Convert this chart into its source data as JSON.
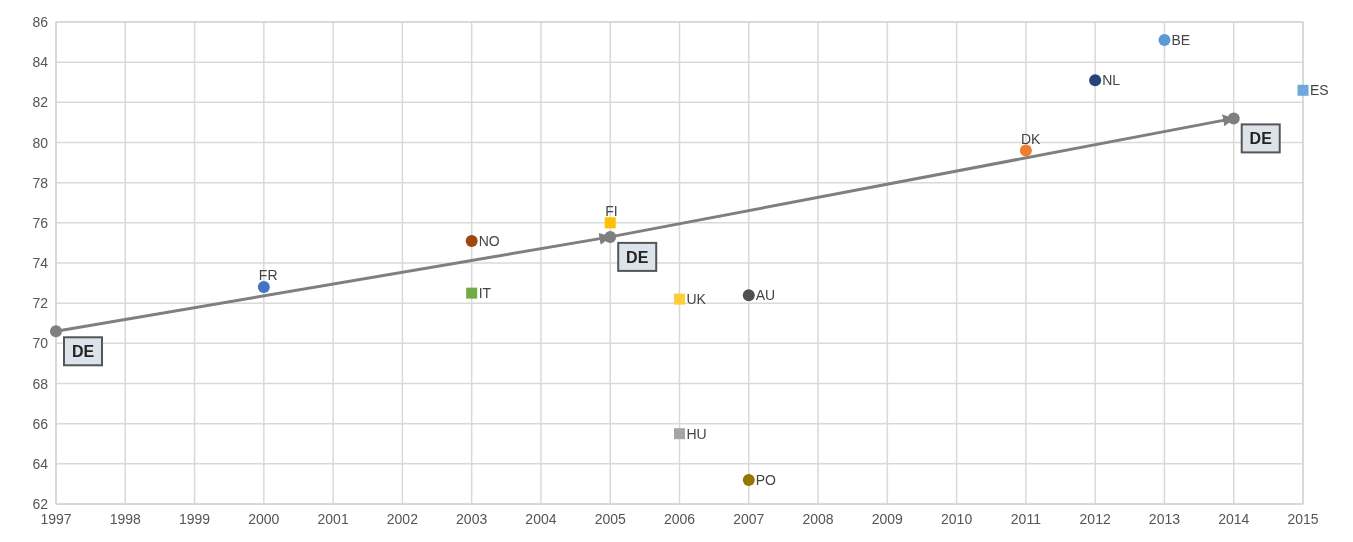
{
  "chart_data": {
    "type": "scatter",
    "xlim": [
      1997,
      2015
    ],
    "xticks": [
      1997,
      1998,
      1999,
      2000,
      2001,
      2002,
      2003,
      2004,
      2005,
      2006,
      2007,
      2008,
      2009,
      2010,
      2011,
      2012,
      2013,
      2014,
      2015
    ],
    "ylim": [
      62,
      86
    ],
    "yticks": [
      62,
      64,
      66,
      68,
      70,
      72,
      74,
      76,
      78,
      80,
      82,
      84,
      86
    ],
    "grid": true,
    "series": [
      {
        "name": "DE",
        "type": "line",
        "marker": "circle",
        "color": "#7f7f7f",
        "x": [
          1997,
          2005,
          2014
        ],
        "values": [
          70.6,
          75.3,
          81.2
        ]
      },
      {
        "name": "FR",
        "marker": "circle",
        "color": "#4472c4",
        "x": [
          2000
        ],
        "values": [
          72.8
        ]
      },
      {
        "name": "NO",
        "marker": "circle",
        "color": "#9e480e",
        "x": [
          2003
        ],
        "values": [
          75.1
        ]
      },
      {
        "name": "IT",
        "marker": "square",
        "color": "#70ad47",
        "x": [
          2003
        ],
        "values": [
          72.5
        ]
      },
      {
        "name": "FI",
        "marker": "square",
        "color": "#ffc000",
        "x": [
          2005
        ],
        "values": [
          76.0
        ]
      },
      {
        "name": "UK",
        "marker": "square",
        "color": "#ffcd38",
        "x": [
          2006
        ],
        "values": [
          72.2
        ]
      },
      {
        "name": "HU",
        "marker": "square",
        "color": "#a5a5a5",
        "x": [
          2006
        ],
        "values": [
          65.5
        ]
      },
      {
        "name": "AU",
        "marker": "circle",
        "color": "#505050",
        "x": [
          2007
        ],
        "values": [
          72.4
        ]
      },
      {
        "name": "PO",
        "marker": "circle",
        "color": "#997300",
        "x": [
          2007
        ],
        "values": [
          63.2
        ]
      },
      {
        "name": "DK",
        "marker": "circle",
        "color": "#ed7d31",
        "x": [
          2011
        ],
        "values": [
          79.6
        ]
      },
      {
        "name": "NL",
        "marker": "circle",
        "color": "#264478",
        "x": [
          2012
        ],
        "values": [
          83.1
        ]
      },
      {
        "name": "BE",
        "marker": "circle",
        "color": "#5b9bd5",
        "x": [
          2013
        ],
        "values": [
          85.1
        ]
      },
      {
        "name": "ES",
        "marker": "square",
        "color": "#6fa8dc",
        "x": [
          2015
        ],
        "values": [
          82.6
        ]
      }
    ]
  }
}
